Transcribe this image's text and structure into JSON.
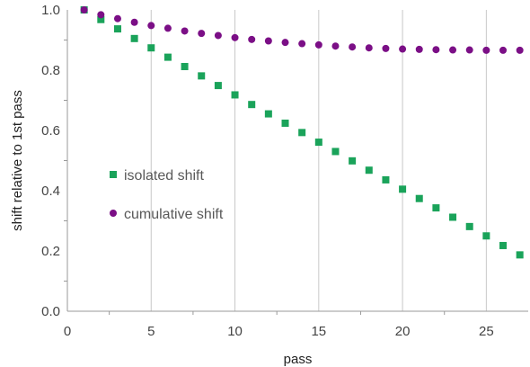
{
  "chart_data": {
    "type": "scatter",
    "xlabel": "pass",
    "ylabel": "shift relative to 1st pass",
    "xlim": [
      0,
      27.5
    ],
    "ylim": [
      0.0,
      1.0
    ],
    "x_ticks": [
      0,
      5,
      10,
      15,
      20,
      25
    ],
    "x_tick_labels": [
      "0",
      "5",
      "10",
      "15",
      "20",
      "25"
    ],
    "y_ticks": [
      0.0,
      0.2,
      0.4,
      0.6,
      0.8,
      1.0
    ],
    "y_tick_labels": [
      "0.0",
      "0.2",
      "0.4",
      "0.6",
      "0.8",
      "1.0"
    ],
    "grid": {
      "vertical": true,
      "horizontal": false
    },
    "legend_position": "center-left",
    "series": [
      {
        "name": "isolated shift",
        "marker": "square",
        "color": "#1aa35a",
        "x": [
          1,
          2,
          3,
          4,
          5,
          6,
          7,
          8,
          9,
          10,
          11,
          12,
          13,
          14,
          15,
          16,
          17,
          18,
          19,
          20,
          21,
          22,
          23,
          24,
          25,
          26,
          27
        ],
        "y": [
          1.0,
          0.968,
          0.937,
          0.905,
          0.874,
          0.843,
          0.812,
          0.781,
          0.749,
          0.718,
          0.686,
          0.655,
          0.624,
          0.593,
          0.561,
          0.53,
          0.499,
          0.468,
          0.436,
          0.405,
          0.374,
          0.343,
          0.312,
          0.281,
          0.25,
          0.218,
          0.187
        ]
      },
      {
        "name": "cumulative shift",
        "marker": "circle",
        "color": "#7b0f86",
        "x": [
          1,
          2,
          3,
          4,
          5,
          6,
          7,
          8,
          9,
          10,
          11,
          12,
          13,
          14,
          15,
          16,
          17,
          18,
          19,
          20,
          21,
          22,
          23,
          24,
          25,
          26,
          27
        ],
        "y": [
          1.0,
          0.984,
          0.971,
          0.959,
          0.948,
          0.939,
          0.93,
          0.922,
          0.915,
          0.908,
          0.902,
          0.897,
          0.892,
          0.888,
          0.884,
          0.88,
          0.877,
          0.874,
          0.872,
          0.87,
          0.869,
          0.868,
          0.867,
          0.867,
          0.866,
          0.866,
          0.866
        ]
      }
    ]
  }
}
